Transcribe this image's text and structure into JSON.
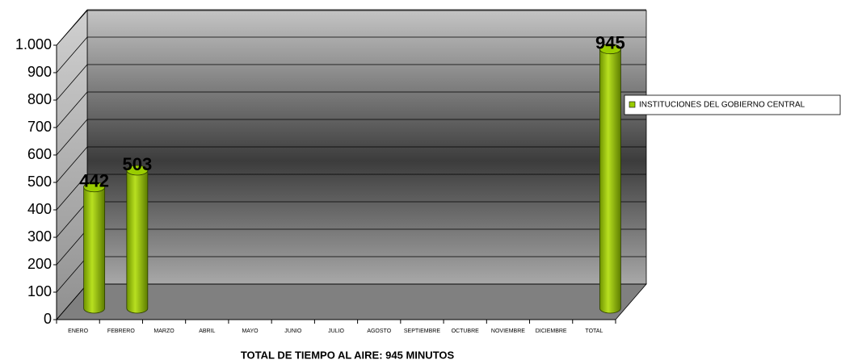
{
  "chart_data": {
    "type": "bar",
    "title": "TOTAL DE TIEMPO AL AIRE: 945 MINUTOS",
    "categories": [
      "ENERO",
      "FEBRERO",
      "MARZO",
      "ABRIL",
      "MAYO",
      "JUNIO",
      "JULIO",
      "AGOSTO",
      "SEPTIEMBRE",
      "OCTUBRE",
      "NOVIEMBRE",
      "DICIEMBRE",
      "TOTAL"
    ],
    "series": [
      {
        "name": "INSTITUCIONES DEL GOBIERNO CENTRAL",
        "color": "#99cc00",
        "values": [
          442,
          503,
          null,
          null,
          null,
          null,
          null,
          null,
          null,
          null,
          null,
          null,
          945
        ]
      }
    ],
    "ylim": [
      0,
      1000
    ],
    "yticks": [
      0,
      100,
      200,
      300,
      400,
      500,
      600,
      700,
      800,
      900,
      {
        "value": 1000,
        "label": "1.000"
      }
    ],
    "grid": true,
    "legend": "right"
  }
}
